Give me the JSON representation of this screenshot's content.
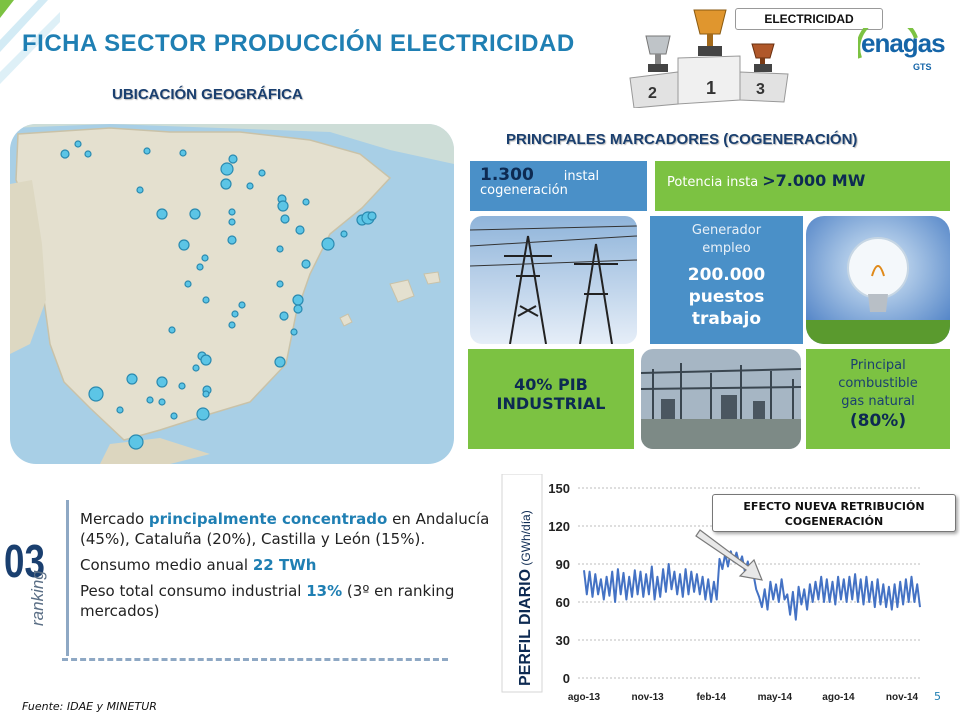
{
  "header": {
    "title": "FICHA SECTOR PRODUCCIÓN ELECTRICIDAD",
    "badge": "ELECTRICIDAD",
    "podium_ranks": [
      "2",
      "1",
      "3"
    ],
    "logo_name": "enagas",
    "logo_sub": "GTS"
  },
  "map_section": {
    "title": "UBICACIÓN GEOGRÁFICA"
  },
  "markers": {
    "title": "PRINCIPALES MARCADORES (COGENERACIÓN)",
    "installations": {
      "value": "1.300",
      "unit": "instal",
      "rest": "cogeneración"
    },
    "power": {
      "label": "Potencia insta",
      "value": ">7.000 MW"
    },
    "employment": {
      "label_line1": "Generador",
      "label_line2": "empleo",
      "value_line1": "200.000",
      "value_line2": "puestos",
      "value_line3": "trabajo"
    },
    "gdp": {
      "line1": "40% PIB",
      "line2": "INDUSTRIAL"
    },
    "fuel": {
      "line1": "Principal",
      "line2": "combustible",
      "line3": "gas natural",
      "value": "(80%)"
    }
  },
  "ranking": {
    "number": "03",
    "word": "ranking",
    "bullets": [
      {
        "pre": "Mercado ",
        "hl": "principalmente concentrado",
        "post": " en Andalucía (45%), Cataluña (20%), Castilla y León (15%)."
      },
      {
        "pre": "Consumo medio anual ",
        "hl": "22 TWh",
        "post": ""
      },
      {
        "pre": "Peso total consumo industrial ",
        "hl": "13%",
        "post": " (3º en ranking mercados)"
      }
    ]
  },
  "footer": {
    "source": "Fuente: IDAE y MINETUR",
    "page": "5"
  },
  "callout": {
    "line1": "EFECTO NUEVA RETRIBUCIÓN",
    "line2": "COGENERACIÓN"
  },
  "chart_data": {
    "type": "line",
    "ylabel_main": "PERFIL DIARIO",
    "ylabel_unit": "(GWh/día)",
    "ylim": [
      0,
      150
    ],
    "yticks": [
      "0",
      "30",
      "60",
      "90",
      "120",
      "150"
    ],
    "xticks": [
      "ago-13",
      "nov-13",
      "feb-14",
      "may-14",
      "ago-14",
      "nov-14"
    ],
    "grid": true,
    "color": "#4472c4",
    "series": [
      {
        "values": [
          85,
          66,
          84,
          64,
          82,
          66,
          78,
          62,
          80,
          65,
          84,
          60,
          86,
          66,
          83,
          62,
          80,
          64,
          85,
          66,
          84,
          64,
          82,
          66,
          88,
          62,
          80,
          64,
          86,
          68,
          90,
          70,
          84,
          66,
          82,
          64,
          86,
          66,
          84,
          68,
          82,
          66,
          80,
          62,
          78,
          60,
          76,
          62,
          94,
          86,
          98,
          88,
          100,
          92,
          99,
          90,
          96,
          84,
          92,
          80,
          82,
          70,
          64,
          56,
          70,
          54,
          76,
          62,
          74,
          60,
          78,
          62,
          66,
          50,
          68,
          46,
          72,
          58,
          70,
          54,
          74,
          60,
          76,
          62,
          80,
          60,
          78,
          60,
          76,
          58,
          80,
          62,
          78,
          60,
          80,
          62,
          82,
          60,
          78,
          58,
          80,
          60,
          76,
          56,
          78,
          58,
          74,
          56,
          72,
          54,
          74,
          56,
          76,
          58,
          78,
          60,
          80,
          60,
          74,
          56
        ]
      }
    ]
  }
}
